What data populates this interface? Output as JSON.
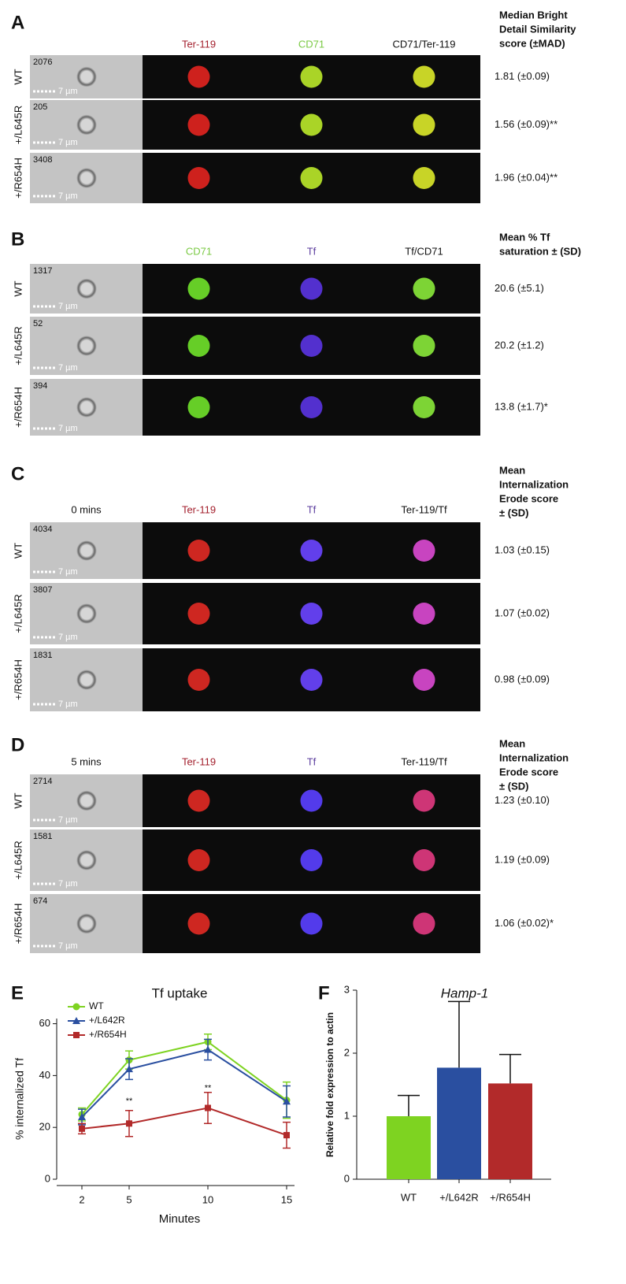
{
  "figure": {
    "panels": [
      {
        "letter": "A",
        "columns": [
          {
            "label": "Ter-119",
            "color": "#a31f2c"
          },
          {
            "label": "CD71",
            "color": "#7ac943"
          },
          {
            "label": "CD71/Ter-119",
            "color": "#111111"
          }
        ],
        "score_title": [
          "Median Bright",
          "Detail Similarity",
          "score (±MAD)"
        ],
        "rows": [
          {
            "label": "WT",
            "count": "2076",
            "scale": "7 µm",
            "score": "1.81 (±0.09)"
          },
          {
            "label": "+/L645R",
            "count": "205",
            "scale": "7 µm",
            "score": "1.56 (±0.09)**"
          },
          {
            "label": "+/R654H",
            "count": "3408",
            "scale": "7 µm",
            "score": "1.96 (±0.04)**"
          }
        ]
      },
      {
        "letter": "B",
        "columns": [
          {
            "label": "CD71",
            "color": "#7ac943"
          },
          {
            "label": "Tf",
            "color": "#5b3c9e"
          },
          {
            "label": "Tf/CD71",
            "color": "#111111"
          }
        ],
        "score_title": [
          "Mean % Tf",
          "saturation ± (SD)"
        ],
        "rows": [
          {
            "label": "WT",
            "count": "1317",
            "scale": "7 µm",
            "score": "20.6 (±5.1)"
          },
          {
            "label": "+/L645R",
            "count": "52",
            "scale": "7 µm",
            "score": "20.2 (±1.2)"
          },
          {
            "label": "+/R654H",
            "count": "394",
            "scale": "7 µm",
            "score": "13.8 (±1.7)*"
          }
        ]
      },
      {
        "letter": "C",
        "time": "0 mins",
        "columns": [
          {
            "label": "Ter-119",
            "color": "#a31f2c"
          },
          {
            "label": "Tf",
            "color": "#5b3c9e"
          },
          {
            "label": "Ter-119/Tf",
            "color": "#111111"
          }
        ],
        "score_title": [
          "Mean",
          "Internalization",
          "Erode score",
          "± (SD)"
        ],
        "rows": [
          {
            "label": "WT",
            "count": "4034",
            "scale": "7 µm",
            "score": "1.03 (±0.15)"
          },
          {
            "label": "+/L645R",
            "count": "3807",
            "scale": "7 µm",
            "score": "1.07 (±0.02)"
          },
          {
            "label": "+/R654H",
            "count": "1831",
            "scale": "7 µm",
            "score": "0.98 (±0.09)"
          }
        ]
      },
      {
        "letter": "D",
        "time": "5 mins",
        "columns": [
          {
            "label": "Ter-119",
            "color": "#a31f2c"
          },
          {
            "label": "Tf",
            "color": "#5b3c9e"
          },
          {
            "label": "Ter-119/Tf",
            "color": "#111111"
          }
        ],
        "score_title": [
          "Mean",
          "Internalization",
          "Erode score",
          "± (SD)"
        ],
        "rows": [
          {
            "label": "WT",
            "count": "2714",
            "scale": "7 µm",
            "score": "1.23 (±0.10)"
          },
          {
            "label": "+/L645R",
            "count": "1581",
            "scale": "7 µm",
            "score": "1.19 (±0.09)"
          },
          {
            "label": "+/R654H",
            "count": "674",
            "scale": "7 µm",
            "score": "1.06 (±0.02)*"
          }
        ]
      }
    ]
  },
  "chart_data": [
    {
      "type": "line",
      "letter": "E",
      "title": "Tf uptake",
      "x_label": "Minutes",
      "y_label": "% internalized Tf",
      "x": [
        2,
        5,
        10,
        15
      ],
      "xlim": [
        1,
        15.5
      ],
      "xticks": [
        2,
        5,
        10,
        15
      ],
      "ylim": [
        0,
        62
      ],
      "yticks": [
        0,
        20,
        40,
        60
      ],
      "legend": "top-left",
      "series": [
        {
          "name": "WT",
          "color": "#7ed321",
          "marker": "circle",
          "values": [
            25,
            46,
            53,
            30.5
          ],
          "errors": [
            2.5,
            3.5,
            3,
            7
          ]
        },
        {
          "name": "+/L642R",
          "color": "#2a4fa0",
          "marker": "triangle",
          "values": [
            24,
            42.5,
            50,
            30
          ],
          "errors": [
            3,
            4,
            4,
            6
          ]
        },
        {
          "name": "+/R654H",
          "color": "#b22a2a",
          "marker": "square",
          "values": [
            19.5,
            21.5,
            27.5,
            17
          ],
          "errors": [
            2,
            5,
            6,
            5
          ]
        }
      ],
      "annotations": [
        {
          "text": "**",
          "x": 5,
          "y": 30
        },
        {
          "text": "**",
          "x": 10,
          "y": 35
        }
      ]
    },
    {
      "type": "bar",
      "letter": "F",
      "title": "Hamp-1",
      "y_label": "Relative fold expression to actin",
      "categories": [
        "WT",
        "+/L642R",
        "+/R654H"
      ],
      "values": [
        1.0,
        1.77,
        1.52
      ],
      "errors": [
        0.33,
        1.05,
        0.46
      ],
      "colors": [
        "#7ed321",
        "#2a4fa0",
        "#b22a2a"
      ],
      "ylim": [
        0,
        3
      ],
      "yticks": [
        0,
        1,
        2,
        3
      ]
    }
  ]
}
